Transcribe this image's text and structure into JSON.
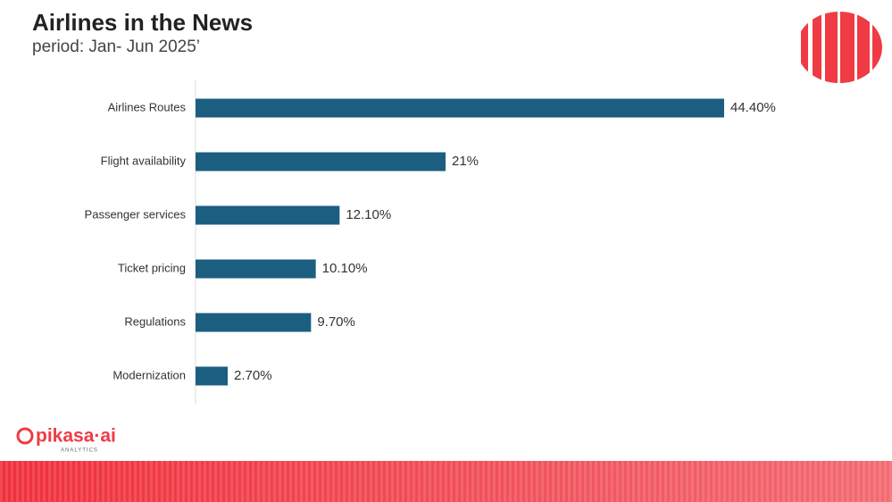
{
  "chart_data": {
    "type": "bar",
    "orientation": "horizontal",
    "title": "Airlines in the News",
    "subtitle": "period: Jan- Jun 2025’",
    "categories": [
      "Airlines Routes",
      "Flight availability",
      "Passenger services",
      "Ticket pricing",
      "Regulations",
      "Modernization"
    ],
    "values": [
      44.4,
      21,
      12.1,
      10.1,
      9.7,
      2.7
    ],
    "value_labels": [
      "44.40%",
      "21%",
      "12.10%",
      "10.10%",
      "9.70%",
      "2.70%"
    ],
    "color": "#1b5e80"
  },
  "logo": {
    "name": "pikasa·ai",
    "tagline": "ANALYTICS"
  }
}
